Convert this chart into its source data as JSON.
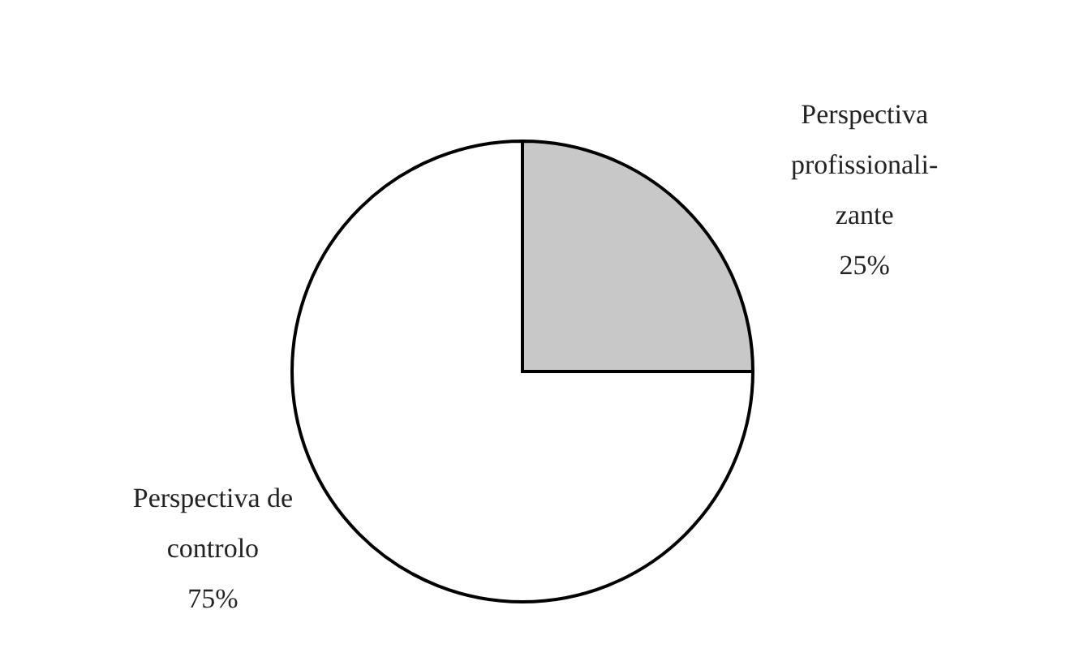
{
  "chart_data": {
    "type": "pie",
    "categories": [
      "Perspectiva\nprofissionali-\nzante",
      "Perspectiva de\ncontrolo"
    ],
    "values": [
      25,
      75
    ],
    "colors": [
      "#c8c8c8",
      "#ffffff"
    ],
    "value_labels": [
      "25%",
      "75%"
    ]
  }
}
